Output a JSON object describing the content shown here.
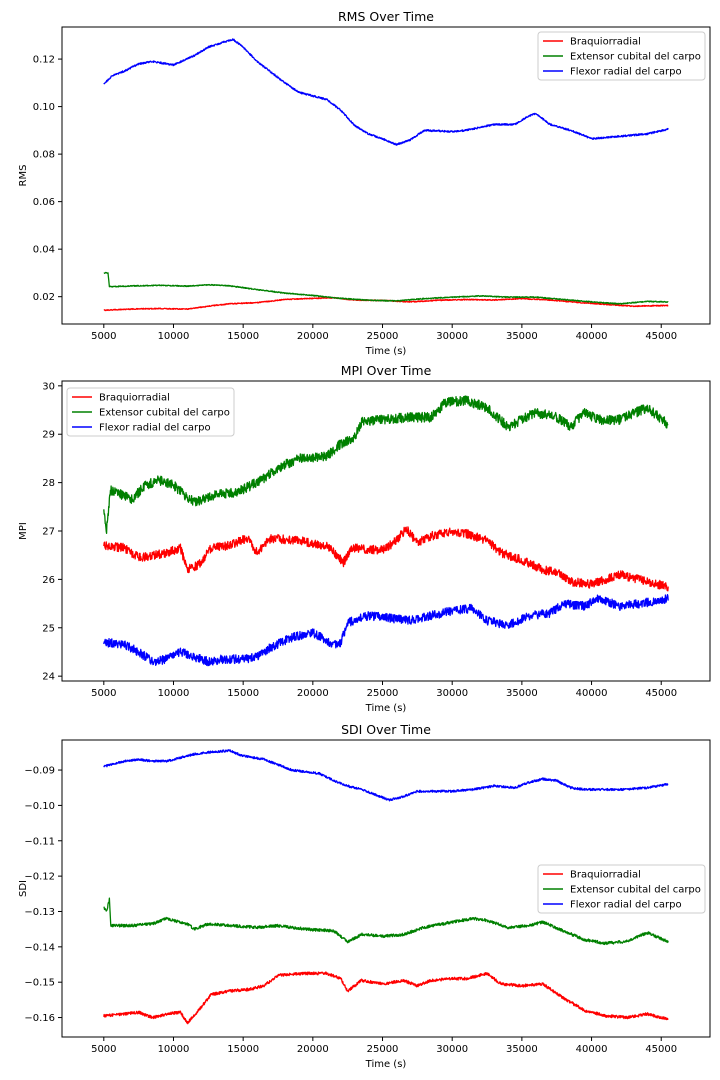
{
  "chart_data": [
    {
      "type": "line",
      "title": "RMS Over Time",
      "xlabel": "Time (s)",
      "ylabel": "RMS",
      "xlim": [
        2000,
        48500
      ],
      "ylim": [
        0.0085,
        0.1335
      ],
      "xticks": [
        5000,
        10000,
        15000,
        20000,
        25000,
        30000,
        35000,
        40000,
        45000
      ],
      "yticks": [
        0.02,
        0.04,
        0.06,
        0.08,
        0.1,
        0.12
      ],
      "ytick_labels": [
        "0.02",
        "0.04",
        "0.06",
        "0.08",
        "0.10",
        "0.12"
      ],
      "legend": "top-right",
      "grid": false,
      "series": [
        {
          "name": "Braquiorradial",
          "color": "#ff0000",
          "noise": 0.0002,
          "x": [
            5000,
            7000,
            9000,
            11000,
            12500,
            14000,
            16000,
            18000,
            20000,
            21500,
            23000,
            25000,
            27000,
            29000,
            31000,
            33000,
            35000,
            37000,
            39000,
            41000,
            43000,
            45500
          ],
          "y": [
            0.0143,
            0.0148,
            0.015,
            0.0148,
            0.016,
            0.017,
            0.0175,
            0.0188,
            0.0193,
            0.0195,
            0.0186,
            0.0184,
            0.0178,
            0.0185,
            0.0188,
            0.0186,
            0.0192,
            0.0186,
            0.0176,
            0.0168,
            0.016,
            0.0163
          ]
        },
        {
          "name": "Extensor cubital del carpo",
          "color": "#008000",
          "noise": 0.0002,
          "x": [
            5000,
            5300,
            5400,
            7000,
            9000,
            11000,
            12500,
            14000,
            16000,
            18000,
            20000,
            22000,
            24000,
            26000,
            28000,
            30000,
            32000,
            34000,
            36000,
            38000,
            40000,
            42000,
            44000,
            45500
          ],
          "y": [
            0.03,
            0.03,
            0.0242,
            0.0245,
            0.0248,
            0.0244,
            0.025,
            0.0246,
            0.023,
            0.0215,
            0.0205,
            0.0193,
            0.0185,
            0.0182,
            0.0192,
            0.0198,
            0.0203,
            0.0198,
            0.0198,
            0.0188,
            0.0178,
            0.017,
            0.018,
            0.0178
          ]
        },
        {
          "name": "Flexor radial del carpo",
          "color": "#0000ff",
          "noise": 0.00035,
          "x": [
            5000,
            5600,
            6500,
            7500,
            8500,
            10000,
            11500,
            12500,
            13500,
            14300,
            15000,
            16000,
            17000,
            18000,
            19000,
            20000,
            21000,
            22000,
            23000,
            24000,
            25000,
            26000,
            27000,
            28000,
            30000,
            31000,
            33000,
            34500,
            35500,
            36000,
            37000,
            38500,
            40000,
            42000,
            44000,
            45500
          ],
          "y": [
            0.1095,
            0.113,
            0.115,
            0.118,
            0.119,
            0.1175,
            0.1215,
            0.125,
            0.127,
            0.1282,
            0.125,
            0.119,
            0.1145,
            0.11,
            0.106,
            0.1045,
            0.103,
            0.0985,
            0.092,
            0.0885,
            0.0865,
            0.084,
            0.086,
            0.09,
            0.0895,
            0.09,
            0.0925,
            0.0925,
            0.096,
            0.0972,
            0.0925,
            0.09,
            0.0865,
            0.0875,
            0.0885,
            0.0905
          ]
        }
      ]
    },
    {
      "type": "line",
      "title": "MPI Over Time",
      "xlabel": "Time (s)",
      "ylabel": "MPI",
      "xlim": [
        2000,
        48500
      ],
      "ylim": [
        23.9,
        30.1
      ],
      "xticks": [
        5000,
        10000,
        15000,
        20000,
        25000,
        30000,
        35000,
        40000,
        45000
      ],
      "yticks": [
        24,
        25,
        26,
        27,
        28,
        29,
        30
      ],
      "ytick_labels": [
        "24",
        "25",
        "26",
        "27",
        "28",
        "29",
        "30"
      ],
      "legend": "top-left",
      "grid": false,
      "series": [
        {
          "name": "Braquiorradial",
          "color": "#ff0000",
          "noise": 0.09,
          "x": [
            5000,
            6500,
            7500,
            8500,
            9500,
            10500,
            11000,
            11800,
            12700,
            14000,
            15300,
            16000,
            17000,
            19000,
            21000,
            22200,
            22800,
            25000,
            26000,
            26700,
            27500,
            28500,
            30000,
            31000,
            32500,
            33500,
            35000,
            36500,
            37500,
            38500,
            40000,
            42000,
            44000,
            45500
          ],
          "y": [
            26.7,
            26.65,
            26.45,
            26.5,
            26.55,
            26.65,
            26.2,
            26.3,
            26.65,
            26.7,
            26.85,
            26.55,
            26.85,
            26.8,
            26.7,
            26.35,
            26.65,
            26.6,
            26.8,
            27.05,
            26.75,
            26.9,
            27.0,
            26.95,
            26.8,
            26.55,
            26.4,
            26.2,
            26.15,
            25.95,
            25.9,
            26.1,
            25.95,
            25.85
          ]
        },
        {
          "name": "Extensor cubital del carpo",
          "color": "#008000",
          "noise": 0.1,
          "x": [
            5000,
            5200,
            5500,
            7000,
            8000,
            9000,
            10000,
            11000,
            11500,
            13000,
            14500,
            16000,
            17500,
            19000,
            21000,
            22000,
            23000,
            23500,
            25000,
            27000,
            28500,
            29500,
            31000,
            32500,
            34000,
            36000,
            37500,
            38500,
            39500,
            40500,
            42000,
            44000,
            45500
          ],
          "y": [
            27.35,
            27.05,
            27.85,
            27.65,
            27.95,
            28.05,
            27.95,
            27.7,
            27.6,
            27.75,
            27.8,
            28.0,
            28.3,
            28.5,
            28.55,
            28.8,
            28.95,
            29.25,
            29.3,
            29.35,
            29.35,
            29.65,
            29.7,
            29.55,
            29.15,
            29.45,
            29.35,
            29.15,
            29.45,
            29.3,
            29.3,
            29.55,
            29.2
          ]
        },
        {
          "name": "Flexor radial del carpo",
          "color": "#0000ff",
          "noise": 0.09,
          "x": [
            5000,
            6500,
            7500,
            8500,
            9500,
            10500,
            11500,
            12500,
            13500,
            15000,
            16000,
            17000,
            18500,
            20000,
            21500,
            22000,
            22500,
            24000,
            25500,
            27000,
            28500,
            30000,
            31500,
            32500,
            34000,
            35500,
            37000,
            38000,
            39500,
            40500,
            42000,
            43500,
            45500
          ],
          "y": [
            24.7,
            24.65,
            24.5,
            24.3,
            24.35,
            24.5,
            24.4,
            24.3,
            24.35,
            24.35,
            24.4,
            24.6,
            24.8,
            24.9,
            24.65,
            24.7,
            25.1,
            25.25,
            25.2,
            25.15,
            25.25,
            25.35,
            25.4,
            25.15,
            25.05,
            25.25,
            25.3,
            25.5,
            25.45,
            25.6,
            25.45,
            25.5,
            25.6
          ]
        }
      ]
    },
    {
      "type": "line",
      "title": "SDI Over Time",
      "xlabel": "Time (s)",
      "ylabel": "SDI",
      "xlim": [
        2000,
        48500
      ],
      "ylim": [
        -0.1655,
        -0.0815
      ],
      "xticks": [
        5000,
        10000,
        15000,
        20000,
        25000,
        30000,
        35000,
        40000,
        45000
      ],
      "yticks": [
        -0.16,
        -0.15,
        -0.14,
        -0.13,
        -0.12,
        -0.11,
        -0.1,
        -0.09
      ],
      "ytick_labels": [
        "−0.16",
        "−0.15",
        "−0.14",
        "−0.13",
        "−0.12",
        "−0.11",
        "−0.10",
        "−0.09"
      ],
      "legend": "center-right",
      "grid": false,
      "series": [
        {
          "name": "Braquiorradial",
          "color": "#ff0000",
          "noise": 0.0004,
          "x": [
            5000,
            6500,
            7500,
            8500,
            9500,
            10500,
            11000,
            11800,
            12700,
            14000,
            15500,
            16500,
            17500,
            19500,
            21000,
            22000,
            22500,
            23500,
            25000,
            26500,
            27500,
            28500,
            30000,
            31000,
            32500,
            33500,
            35000,
            36500,
            38000,
            39500,
            41000,
            42500,
            44000,
            45500
          ],
          "y": [
            -0.1595,
            -0.159,
            -0.1585,
            -0.16,
            -0.159,
            -0.1585,
            -0.1615,
            -0.158,
            -0.1535,
            -0.1525,
            -0.152,
            -0.151,
            -0.148,
            -0.1475,
            -0.1475,
            -0.149,
            -0.1525,
            -0.1495,
            -0.1505,
            -0.1495,
            -0.151,
            -0.1495,
            -0.149,
            -0.149,
            -0.1475,
            -0.1505,
            -0.151,
            -0.1505,
            -0.1545,
            -0.158,
            -0.1595,
            -0.16,
            -0.159,
            -0.1605
          ]
        },
        {
          "name": "Extensor cubital del carpo",
          "color": "#008000",
          "noise": 0.0004,
          "x": [
            5000,
            5200,
            5400,
            5500,
            7000,
            8500,
            9500,
            11000,
            11500,
            12500,
            14000,
            16000,
            17500,
            19500,
            21500,
            22500,
            23500,
            25000,
            26500,
            28000,
            30000,
            31500,
            32500,
            34000,
            35500,
            36500,
            38000,
            39500,
            41000,
            42500,
            44000,
            45500
          ],
          "y": [
            -0.129,
            -0.13,
            -0.1265,
            -0.134,
            -0.134,
            -0.1335,
            -0.132,
            -0.1335,
            -0.135,
            -0.1335,
            -0.134,
            -0.1345,
            -0.134,
            -0.135,
            -0.1355,
            -0.1385,
            -0.1365,
            -0.137,
            -0.1365,
            -0.1345,
            -0.133,
            -0.132,
            -0.1325,
            -0.1345,
            -0.134,
            -0.133,
            -0.1355,
            -0.138,
            -0.139,
            -0.1385,
            -0.136,
            -0.1385
          ]
        },
        {
          "name": "Flexor radial del carpo",
          "color": "#0000ff",
          "noise": 0.0003,
          "x": [
            5000,
            6500,
            7500,
            8500,
            9500,
            10500,
            11500,
            12500,
            14000,
            15000,
            16500,
            17500,
            18500,
            19500,
            20500,
            21500,
            22500,
            23500,
            24500,
            25500,
            26500,
            27500,
            29000,
            30000,
            31500,
            33000,
            34500,
            35500,
            36500,
            37500,
            38500,
            39500,
            41000,
            42500,
            44000,
            45500
          ],
          "y": [
            -0.089,
            -0.0875,
            -0.087,
            -0.0875,
            -0.0875,
            -0.0865,
            -0.0855,
            -0.085,
            -0.0845,
            -0.086,
            -0.087,
            -0.0885,
            -0.09,
            -0.0905,
            -0.091,
            -0.093,
            -0.0945,
            -0.0955,
            -0.097,
            -0.0985,
            -0.0975,
            -0.096,
            -0.096,
            -0.096,
            -0.0955,
            -0.0945,
            -0.095,
            -0.0935,
            -0.0925,
            -0.093,
            -0.095,
            -0.0955,
            -0.0955,
            -0.0955,
            -0.095,
            -0.094
          ]
        }
      ]
    }
  ]
}
